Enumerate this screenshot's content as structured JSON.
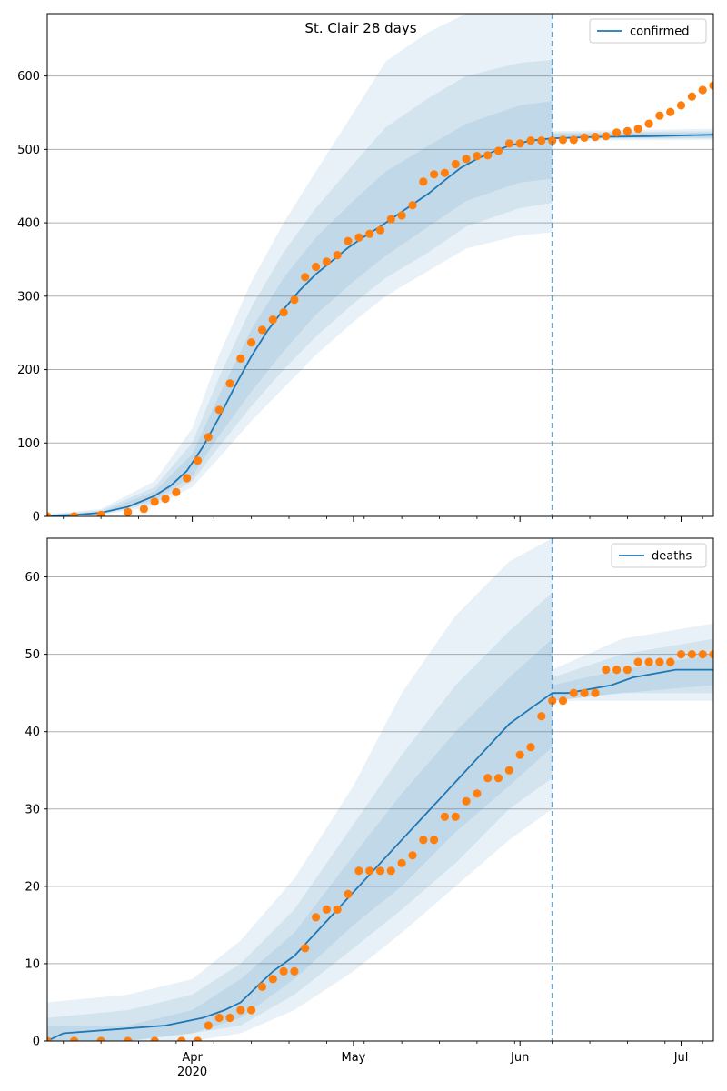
{
  "figure": {
    "title": "St. Clair 28 days",
    "x_tick_labels": [
      "Apr",
      "May",
      "Jun",
      "Jul"
    ],
    "x_year_label": "2020"
  },
  "colors": {
    "model_line": "#1f77b4",
    "observed_points": "#ff7f0e",
    "band": "#1f77b4",
    "grid": "#b0b0b0",
    "cutoff_line": "#1f77b4"
  },
  "chart_data": [
    {
      "type": "line",
      "legend": "confirmed",
      "legend_position": "top-right",
      "grid_y": true,
      "x_range": [
        "2020-03-05",
        "2020-07-07"
      ],
      "ylim": [
        0,
        685
      ],
      "y_ticks": [
        0,
        100,
        200,
        300,
        400,
        500,
        600
      ],
      "forecast_start": "2020-06-07",
      "model_median": [
        [
          "2020-03-05",
          1
        ],
        [
          "2020-03-10",
          2
        ],
        [
          "2020-03-15",
          5
        ],
        [
          "2020-03-20",
          13
        ],
        [
          "2020-03-25",
          28
        ],
        [
          "2020-03-28",
          42
        ],
        [
          "2020-03-31",
          62
        ],
        [
          "2020-04-03",
          95
        ],
        [
          "2020-04-06",
          135
        ],
        [
          "2020-04-09",
          178
        ],
        [
          "2020-04-12",
          218
        ],
        [
          "2020-04-15",
          253
        ],
        [
          "2020-04-18",
          282
        ],
        [
          "2020-04-21",
          308
        ],
        [
          "2020-04-24",
          330
        ],
        [
          "2020-04-27",
          348
        ],
        [
          "2020-04-30",
          366
        ],
        [
          "2020-05-03",
          381
        ],
        [
          "2020-05-06",
          395
        ],
        [
          "2020-05-09",
          410
        ],
        [
          "2020-05-12",
          425
        ],
        [
          "2020-05-15",
          440
        ],
        [
          "2020-05-18",
          458
        ],
        [
          "2020-05-21",
          475
        ],
        [
          "2020-05-24",
          487
        ],
        [
          "2020-05-27",
          497
        ],
        [
          "2020-05-30",
          505
        ],
        [
          "2020-06-03",
          512
        ],
        [
          "2020-06-07",
          515
        ],
        [
          "2020-06-15",
          517
        ],
        [
          "2020-06-25",
          518
        ],
        [
          "2020-07-07",
          520
        ]
      ],
      "bands": [
        {
          "level": "outer",
          "points": [
            [
              "2020-03-05",
              0,
              3
            ],
            [
              "2020-03-15",
              2,
              10
            ],
            [
              "2020-03-25",
              14,
              48
            ],
            [
              "2020-04-01",
              40,
              120
            ],
            [
              "2020-04-06",
              80,
              220
            ],
            [
              "2020-04-12",
              130,
              320
            ],
            [
              "2020-04-18",
              175,
              400
            ],
            [
              "2020-04-24",
              220,
              470
            ],
            [
              "2020-05-01",
              265,
              550
            ],
            [
              "2020-05-07",
              300,
              620
            ],
            [
              "2020-05-15",
              335,
              660
            ],
            [
              "2020-05-22",
              365,
              685
            ],
            [
              "2020-06-01",
              383,
              685
            ],
            [
              "2020-06-07",
              387,
              685
            ],
            [
              "2020-06-07",
              512,
              525
            ],
            [
              "2020-07-07",
              513,
              528
            ]
          ]
        },
        {
          "level": "middle",
          "points": [
            [
              "2020-03-05",
              0,
              2
            ],
            [
              "2020-03-15",
              3,
              8
            ],
            [
              "2020-03-25",
              18,
              40
            ],
            [
              "2020-04-01",
              48,
              100
            ],
            [
              "2020-04-06",
              95,
              190
            ],
            [
              "2020-04-12",
              150,
              285
            ],
            [
              "2020-04-18",
              200,
              360
            ],
            [
              "2020-04-24",
              245,
              420
            ],
            [
              "2020-05-01",
              290,
              480
            ],
            [
              "2020-05-07",
              325,
              530
            ],
            [
              "2020-05-15",
              360,
              570
            ],
            [
              "2020-05-22",
              395,
              600
            ],
            [
              "2020-06-01",
              420,
              618
            ],
            [
              "2020-06-07",
              427,
              622
            ],
            [
              "2020-06-07",
              514,
              523
            ],
            [
              "2020-07-07",
              515,
              525
            ]
          ]
        },
        {
          "level": "inner",
          "points": [
            [
              "2020-03-05",
              0,
              2
            ],
            [
              "2020-03-15",
              4,
              6
            ],
            [
              "2020-03-25",
              22,
              34
            ],
            [
              "2020-04-01",
              55,
              85
            ],
            [
              "2020-04-06",
              110,
              165
            ],
            [
              "2020-04-12",
              170,
              255
            ],
            [
              "2020-04-18",
              225,
              325
            ],
            [
              "2020-04-24",
              275,
              380
            ],
            [
              "2020-05-01",
              320,
              430
            ],
            [
              "2020-05-07",
              355,
              470
            ],
            [
              "2020-05-15",
              395,
              505
            ],
            [
              "2020-05-22",
              430,
              535
            ],
            [
              "2020-06-01",
              455,
              560
            ],
            [
              "2020-06-07",
              460,
              566
            ],
            [
              "2020-06-07",
              515,
              521
            ],
            [
              "2020-07-07",
              516,
              523
            ]
          ]
        }
      ],
      "observed": [
        [
          "2020-03-05",
          0
        ],
        [
          "2020-03-10",
          0
        ],
        [
          "2020-03-15",
          2
        ],
        [
          "2020-03-20",
          6
        ],
        [
          "2020-03-23",
          10
        ],
        [
          "2020-03-25",
          20
        ],
        [
          "2020-03-27",
          24
        ],
        [
          "2020-03-29",
          33
        ],
        [
          "2020-03-31",
          52
        ],
        [
          "2020-04-02",
          76
        ],
        [
          "2020-04-04",
          108
        ],
        [
          "2020-04-06",
          145
        ],
        [
          "2020-04-08",
          181
        ],
        [
          "2020-04-10",
          215
        ],
        [
          "2020-04-12",
          237
        ],
        [
          "2020-04-14",
          254
        ],
        [
          "2020-04-16",
          268
        ],
        [
          "2020-04-18",
          278
        ],
        [
          "2020-04-20",
          295
        ],
        [
          "2020-04-22",
          326
        ],
        [
          "2020-04-24",
          340
        ],
        [
          "2020-04-26",
          347
        ],
        [
          "2020-04-28",
          356
        ],
        [
          "2020-04-30",
          375
        ],
        [
          "2020-05-02",
          380
        ],
        [
          "2020-05-04",
          385
        ],
        [
          "2020-05-06",
          390
        ],
        [
          "2020-05-08",
          405
        ],
        [
          "2020-05-10",
          410
        ],
        [
          "2020-05-12",
          424
        ],
        [
          "2020-05-14",
          456
        ],
        [
          "2020-05-16",
          466
        ],
        [
          "2020-05-18",
          468
        ],
        [
          "2020-05-20",
          480
        ],
        [
          "2020-05-22",
          487
        ],
        [
          "2020-05-24",
          491
        ],
        [
          "2020-05-26",
          492
        ],
        [
          "2020-05-28",
          498
        ],
        [
          "2020-05-30",
          508
        ],
        [
          "2020-06-01",
          508
        ],
        [
          "2020-06-03",
          512
        ],
        [
          "2020-06-05",
          512
        ],
        [
          "2020-06-07",
          512
        ],
        [
          "2020-06-09",
          513
        ],
        [
          "2020-06-11",
          513
        ],
        [
          "2020-06-13",
          516
        ],
        [
          "2020-06-15",
          517
        ],
        [
          "2020-06-17",
          518
        ],
        [
          "2020-06-19",
          523
        ],
        [
          "2020-06-21",
          525
        ],
        [
          "2020-06-23",
          528
        ],
        [
          "2020-06-25",
          535
        ],
        [
          "2020-06-27",
          546
        ],
        [
          "2020-06-29",
          551
        ],
        [
          "2020-07-01",
          560
        ],
        [
          "2020-07-03",
          572
        ],
        [
          "2020-07-05",
          581
        ],
        [
          "2020-07-07",
          587
        ]
      ]
    },
    {
      "type": "line",
      "legend": "deaths",
      "legend_position": "top-right",
      "grid_y": true,
      "x_range": [
        "2020-03-05",
        "2020-07-07"
      ],
      "ylim": [
        0,
        65
      ],
      "y_ticks": [
        0,
        10,
        20,
        30,
        40,
        50,
        60
      ],
      "forecast_start": "2020-06-07",
      "model_median": [
        [
          "2020-03-05",
          0
        ],
        [
          "2020-03-08",
          1
        ],
        [
          "2020-03-27",
          2
        ],
        [
          "2020-04-03",
          3
        ],
        [
          "2020-04-07",
          4
        ],
        [
          "2020-04-10",
          5
        ],
        [
          "2020-04-13",
          7
        ],
        [
          "2020-04-16",
          9
        ],
        [
          "2020-04-20",
          11
        ],
        [
          "2020-04-24",
          14
        ],
        [
          "2020-04-28",
          17
        ],
        [
          "2020-05-02",
          20
        ],
        [
          "2020-05-06",
          23
        ],
        [
          "2020-05-10",
          26
        ],
        [
          "2020-05-14",
          29
        ],
        [
          "2020-05-18",
          32
        ],
        [
          "2020-05-22",
          35
        ],
        [
          "2020-05-26",
          38
        ],
        [
          "2020-05-30",
          41
        ],
        [
          "2020-06-03",
          43
        ],
        [
          "2020-06-07",
          45
        ],
        [
          "2020-06-10",
          45
        ],
        [
          "2020-06-18",
          46
        ],
        [
          "2020-06-22",
          47
        ],
        [
          "2020-06-30",
          48
        ],
        [
          "2020-07-07",
          48
        ]
      ],
      "bands": [
        {
          "level": "outer",
          "points": [
            [
              "2020-03-05",
              0,
              5
            ],
            [
              "2020-03-20",
              0,
              6
            ],
            [
              "2020-04-01",
              0,
              8
            ],
            [
              "2020-04-10",
              1,
              13
            ],
            [
              "2020-04-20",
              4,
              21
            ],
            [
              "2020-05-01",
              9,
              33
            ],
            [
              "2020-05-10",
              14,
              45
            ],
            [
              "2020-05-20",
              20,
              55
            ],
            [
              "2020-05-30",
              26,
              62
            ],
            [
              "2020-06-07",
              30,
              65
            ],
            [
              "2020-06-07",
              44,
              48
            ],
            [
              "2020-06-20",
              44,
              52
            ],
            [
              "2020-07-07",
              44,
              54
            ]
          ]
        },
        {
          "level": "middle",
          "points": [
            [
              "2020-03-05",
              0,
              3
            ],
            [
              "2020-03-20",
              0,
              4
            ],
            [
              "2020-04-01",
              1,
              6
            ],
            [
              "2020-04-10",
              2,
              10
            ],
            [
              "2020-04-20",
              6,
              17
            ],
            [
              "2020-05-01",
              12,
              28
            ],
            [
              "2020-05-10",
              17,
              37
            ],
            [
              "2020-05-20",
              23,
              46
            ],
            [
              "2020-05-30",
              30,
              53
            ],
            [
              "2020-06-07",
              34,
              58
            ],
            [
              "2020-06-07",
              44,
              47
            ],
            [
              "2020-06-20",
              45,
              50
            ],
            [
              "2020-07-07",
              45,
              52
            ]
          ]
        },
        {
          "level": "inner",
          "points": [
            [
              "2020-03-05",
              0,
              2
            ],
            [
              "2020-03-20",
              0,
              2
            ],
            [
              "2020-04-01",
              1,
              4
            ],
            [
              "2020-04-10",
              3,
              8
            ],
            [
              "2020-04-20",
              8,
              14
            ],
            [
              "2020-05-01",
              15,
              24
            ],
            [
              "2020-05-10",
              20,
              32
            ],
            [
              "2020-05-20",
              27,
              40
            ],
            [
              "2020-05-30",
              33,
              47
            ],
            [
              "2020-06-07",
              38,
              52
            ],
            [
              "2020-06-07",
              44,
              46
            ],
            [
              "2020-06-20",
              45,
              48
            ],
            [
              "2020-07-07",
              46,
              50
            ]
          ]
        }
      ],
      "observed": [
        [
          "2020-03-05",
          0
        ],
        [
          "2020-03-10",
          0
        ],
        [
          "2020-03-15",
          0
        ],
        [
          "2020-03-20",
          0
        ],
        [
          "2020-03-25",
          0
        ],
        [
          "2020-03-30",
          0
        ],
        [
          "2020-04-02",
          0
        ],
        [
          "2020-04-04",
          2
        ],
        [
          "2020-04-06",
          3
        ],
        [
          "2020-04-08",
          3
        ],
        [
          "2020-04-10",
          4
        ],
        [
          "2020-04-12",
          4
        ],
        [
          "2020-04-14",
          7
        ],
        [
          "2020-04-16",
          8
        ],
        [
          "2020-04-18",
          9
        ],
        [
          "2020-04-20",
          9
        ],
        [
          "2020-04-22",
          12
        ],
        [
          "2020-04-24",
          16
        ],
        [
          "2020-04-26",
          17
        ],
        [
          "2020-04-28",
          17
        ],
        [
          "2020-04-30",
          19
        ],
        [
          "2020-05-02",
          22
        ],
        [
          "2020-05-04",
          22
        ],
        [
          "2020-05-06",
          22
        ],
        [
          "2020-05-08",
          22
        ],
        [
          "2020-05-10",
          23
        ],
        [
          "2020-05-12",
          24
        ],
        [
          "2020-05-14",
          26
        ],
        [
          "2020-05-16",
          26
        ],
        [
          "2020-05-18",
          29
        ],
        [
          "2020-05-20",
          29
        ],
        [
          "2020-05-22",
          31
        ],
        [
          "2020-05-24",
          32
        ],
        [
          "2020-05-26",
          34
        ],
        [
          "2020-05-28",
          34
        ],
        [
          "2020-05-30",
          35
        ],
        [
          "2020-06-01",
          37
        ],
        [
          "2020-06-03",
          38
        ],
        [
          "2020-06-05",
          42
        ],
        [
          "2020-06-07",
          44
        ],
        [
          "2020-06-09",
          44
        ],
        [
          "2020-06-11",
          45
        ],
        [
          "2020-06-13",
          45
        ],
        [
          "2020-06-15",
          45
        ],
        [
          "2020-06-17",
          48
        ],
        [
          "2020-06-19",
          48
        ],
        [
          "2020-06-21",
          48
        ],
        [
          "2020-06-23",
          49
        ],
        [
          "2020-06-25",
          49
        ],
        [
          "2020-06-27",
          49
        ],
        [
          "2020-06-29",
          49
        ],
        [
          "2020-07-01",
          50
        ],
        [
          "2020-07-03",
          50
        ],
        [
          "2020-07-05",
          50
        ],
        [
          "2020-07-07",
          50
        ]
      ]
    }
  ]
}
